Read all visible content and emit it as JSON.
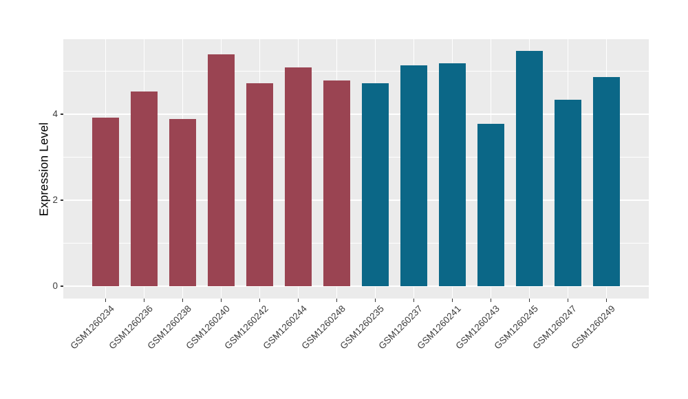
{
  "chart_data": {
    "type": "bar",
    "title": "",
    "xlabel": "",
    "ylabel": "Expression Level",
    "ylim": [
      -0.28,
      5.74
    ],
    "yticks_major": [
      0,
      2,
      4
    ],
    "yticks_minor": [
      1,
      3,
      5
    ],
    "grid": true,
    "legend": "none",
    "panel_bg": "#EBEBEB",
    "grid_color": "#FFFFFF",
    "tick_mark_color": "#333333",
    "tick_label_color": "#3c3c3c",
    "axis_title_color": "#000000",
    "group_colors": {
      "group1": "#9A4452",
      "group2": "#0B6787"
    },
    "bars": [
      {
        "label": "GSM1260234",
        "value": 3.92,
        "group": "group1"
      },
      {
        "label": "GSM1260236",
        "value": 4.53,
        "group": "group1"
      },
      {
        "label": "GSM1260238",
        "value": 3.89,
        "group": "group1"
      },
      {
        "label": "GSM1260240",
        "value": 5.4,
        "group": "group1"
      },
      {
        "label": "GSM1260242",
        "value": 4.72,
        "group": "group1"
      },
      {
        "label": "GSM1260244",
        "value": 5.09,
        "group": "group1"
      },
      {
        "label": "GSM1260248",
        "value": 4.79,
        "group": "group1"
      },
      {
        "label": "GSM1260235",
        "value": 4.72,
        "group": "group2"
      },
      {
        "label": "GSM1260237",
        "value": 5.14,
        "group": "group2"
      },
      {
        "label": "GSM1260241",
        "value": 5.19,
        "group": "group2"
      },
      {
        "label": "GSM1260243",
        "value": 3.78,
        "group": "group2"
      },
      {
        "label": "GSM1260245",
        "value": 5.47,
        "group": "group2"
      },
      {
        "label": "GSM1260247",
        "value": 4.33,
        "group": "group2"
      },
      {
        "label": "GSM1260249",
        "value": 4.86,
        "group": "group2"
      }
    ]
  }
}
